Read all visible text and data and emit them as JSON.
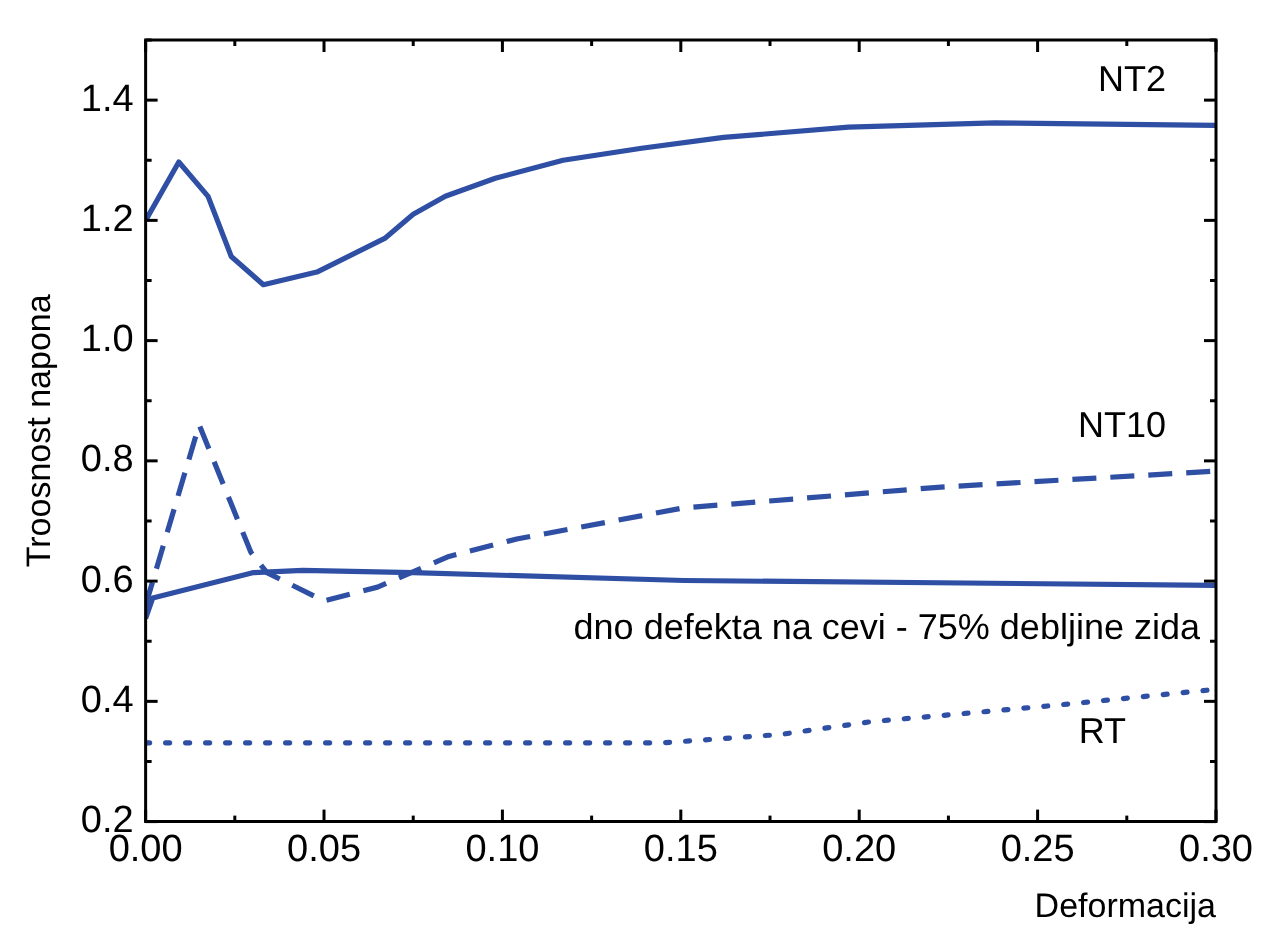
{
  "chart_data": {
    "type": "line",
    "xlabel": "Deformacija",
    "ylabel": "Troosnost napona",
    "xlim": [
      0,
      0.3
    ],
    "xticks": [
      {
        "value": 0,
        "label": "0.00"
      },
      {
        "value": 0.05,
        "label": "0.05"
      },
      {
        "value": 0.1,
        "label": "0.10"
      },
      {
        "value": 0.15,
        "label": "0.15"
      },
      {
        "value": 0.2,
        "label": "0.20"
      },
      {
        "value": 0.25,
        "label": "0.25"
      },
      {
        "value": 0.3,
        "label": "0.30"
      }
    ],
    "ylim": [
      0.2,
      1.5
    ],
    "yticks": [
      0.2,
      0.4,
      0.6,
      0.8,
      {
        "value": 1,
        "label": "1.0"
      },
      1.2,
      1.4
    ],
    "grid": false,
    "legend": false,
    "marker": "none",
    "series": [
      {
        "name": "NT2",
        "color": "#2e4fa3",
        "line_style": "solid",
        "x": [
          0,
          0.0093,
          0.0175,
          0.024,
          0.033,
          0.048,
          0.067,
          0.075,
          0.084,
          0.098,
          0.117,
          0.139,
          0.162,
          0.197,
          0.238,
          0.3
        ],
        "values": [
          1.2,
          1.297,
          1.24,
          1.14,
          1.093,
          1.114,
          1.17,
          1.21,
          1.24,
          1.27,
          1.3,
          1.32,
          1.338,
          1.355,
          1.362,
          1.358
        ]
      },
      {
        "name": "NT10",
        "color": "#2e4fa3",
        "line_style": "dashed",
        "x": [
          0,
          0.015,
          0.0295,
          0.034,
          0.05,
          0.065,
          0.085,
          0.104,
          0.151,
          0.164,
          0.222,
          0.3
        ],
        "values": [
          0.56,
          0.86,
          0.648,
          0.614,
          0.567,
          0.59,
          0.641,
          0.67,
          0.722,
          0.728,
          0.756,
          0.783
        ]
      },
      {
        "name": "dno defekta na cevi - 75% debljine zida",
        "color": "#2e4fa3",
        "line_style": "solid",
        "x": [
          0,
          0.002,
          0.03,
          0.044,
          0.075,
          0.151,
          0.3
        ],
        "values": [
          0.538,
          0.572,
          0.614,
          0.618,
          0.614,
          0.601,
          0.593
        ]
      },
      {
        "name": "RT",
        "color": "#2e4fa3",
        "line_style": "dotted",
        "x": [
          0,
          0.145,
          0.178,
          0.203,
          0.228,
          0.256,
          0.3
        ],
        "values": [
          0.331,
          0.331,
          0.345,
          0.366,
          0.379,
          0.394,
          0.42
        ]
      }
    ]
  }
}
